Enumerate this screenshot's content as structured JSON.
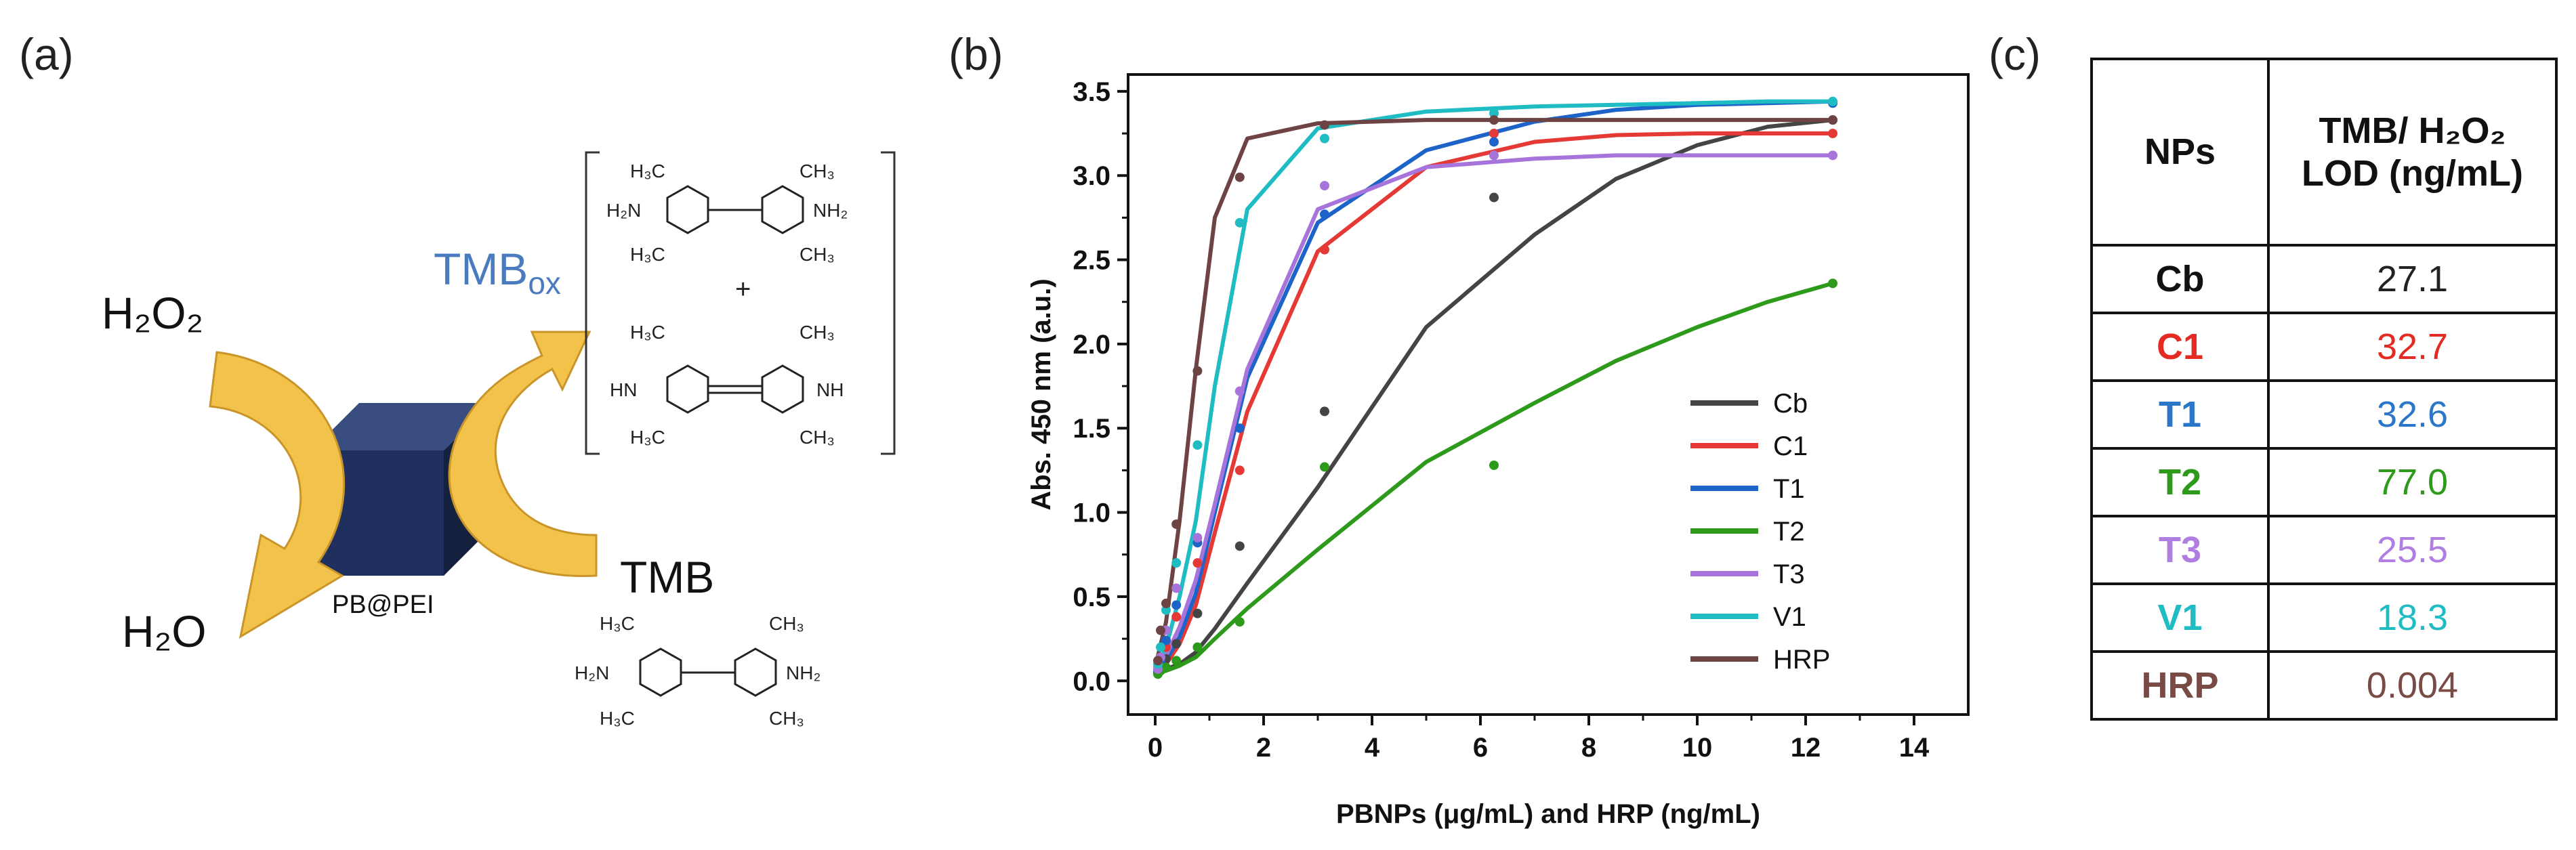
{
  "panels": {
    "a": "(a)",
    "b": "(b)",
    "c": "(c)"
  },
  "scheme": {
    "h2o2_label": "H₂O₂",
    "h2o_label": "H₂O",
    "tmb_label": "TMB",
    "tmbox_label": "TMB",
    "tmbox_sub": "ox",
    "particle_label": "PB@PEI",
    "plus_sign": "+",
    "groups": {
      "h3c": "H₃C",
      "ch3": "CH₃",
      "h2n": "H₂N",
      "nh2": "NH₂",
      "hn": "HN",
      "nh": "NH"
    },
    "colors": {
      "arrow": "#f2c24a",
      "arrow_edge": "#c9952a",
      "cube_front": "#1f2f5e",
      "cube_top": "#3a4d80",
      "cube_side": "#14213f",
      "tmbox": "#4a7bc0"
    }
  },
  "chart_data": {
    "type": "line",
    "xlabel": "PBNPs (μg/mL) and  HRP (ng/mL)",
    "ylabel": "Abs. 450 nm (a.u.)",
    "xlim": [
      -0.5,
      15
    ],
    "ylim": [
      -0.2,
      3.6
    ],
    "xticks": [
      0,
      2,
      4,
      6,
      8,
      10,
      12,
      14
    ],
    "yticks": [
      0.0,
      0.5,
      1.0,
      1.5,
      2.0,
      2.5,
      3.0,
      3.5
    ],
    "x": [
      0.05,
      0.1,
      0.2,
      0.39,
      0.78,
      1.56,
      3.125,
      6.25,
      12.5
    ],
    "series": [
      {
        "name": "Cb",
        "color": "#444444",
        "values": [
          0.05,
          0.08,
          0.13,
          0.22,
          0.4,
          0.8,
          1.6,
          2.87,
          3.33
        ],
        "fit": [
          0.05,
          0.07,
          0.1,
          0.17,
          0.31,
          0.58,
          1.15,
          2.1,
          2.65,
          2.98,
          3.18,
          3.29,
          3.33
        ]
      },
      {
        "name": "C1",
        "color": "#e53935",
        "values": [
          0.06,
          0.1,
          0.2,
          0.38,
          0.7,
          1.25,
          2.56,
          3.25,
          3.25
        ],
        "fit": [
          0.05,
          0.1,
          0.22,
          0.45,
          0.88,
          1.6,
          2.55,
          3.05,
          3.2,
          3.24,
          3.25,
          3.25,
          3.25
        ]
      },
      {
        "name": "T1",
        "color": "#1e63c8",
        "values": [
          0.06,
          0.12,
          0.24,
          0.45,
          0.82,
          1.5,
          2.77,
          3.2,
          3.43
        ],
        "fit": [
          0.05,
          0.12,
          0.26,
          0.52,
          1.0,
          1.8,
          2.72,
          3.15,
          3.32,
          3.39,
          3.42,
          3.43,
          3.44
        ]
      },
      {
        "name": "T2",
        "color": "#2e9a1c",
        "values": [
          0.04,
          0.06,
          0.08,
          0.12,
          0.2,
          0.35,
          1.27,
          1.28,
          2.36
        ],
        "fit": [
          0.04,
          0.06,
          0.09,
          0.14,
          0.25,
          0.43,
          0.78,
          1.3,
          1.65,
          1.9,
          2.1,
          2.25,
          2.36
        ]
      },
      {
        "name": "T3",
        "color": "#a774db",
        "values": [
          0.07,
          0.14,
          0.3,
          0.55,
          0.85,
          1.72,
          2.94,
          3.12,
          3.12
        ],
        "fit": [
          0.05,
          0.15,
          0.32,
          0.6,
          1.05,
          1.85,
          2.8,
          3.05,
          3.1,
          3.12,
          3.12,
          3.12,
          3.12
        ]
      },
      {
        "name": "V1",
        "color": "#1fbcc4",
        "values": [
          0.1,
          0.2,
          0.42,
          0.7,
          1.4,
          2.72,
          3.22,
          3.37,
          3.44
        ],
        "fit": [
          0.06,
          0.2,
          0.5,
          0.95,
          1.75,
          2.8,
          3.28,
          3.38,
          3.41,
          3.42,
          3.43,
          3.44,
          3.44
        ]
      },
      {
        "name": "HRP",
        "color": "#6d4343",
        "values": [
          0.12,
          0.3,
          0.46,
          0.93,
          1.84,
          2.99,
          3.3,
          3.33,
          3.33
        ],
        "fit": [
          0.08,
          0.35,
          0.95,
          1.85,
          2.75,
          3.22,
          3.31,
          3.33,
          3.33,
          3.33,
          3.33,
          3.33,
          3.33
        ]
      }
    ],
    "fit_x": [
      0.0,
      0.2,
      0.45,
      0.75,
      1.1,
      1.7,
      3.0,
      5.0,
      7.0,
      8.5,
      10.0,
      11.3,
      12.5
    ],
    "legend_position": "center-right"
  },
  "table": {
    "header_name": "NPs",
    "header_value_line1": "TMB/ H₂O₂",
    "header_value_line2": "LOD (ng/mL)",
    "rows": [
      {
        "name": "Cb",
        "value": "27.1",
        "name_color": "#111111",
        "value_color": "#222222"
      },
      {
        "name": "C1",
        "value": "32.7",
        "name_color": "#e32b23",
        "value_color": "#e32b23"
      },
      {
        "name": "T1",
        "value": "32.6",
        "name_color": "#2b76c9",
        "value_color": "#2b76c9"
      },
      {
        "name": "T2",
        "value": "77.0",
        "name_color": "#2e9a1c",
        "value_color": "#2e9a1c"
      },
      {
        "name": "T3",
        "value": "25.5",
        "name_color": "#b07de0",
        "value_color": "#b07de0"
      },
      {
        "name": "V1",
        "value": "18.3",
        "name_color": "#1fbcc4",
        "value_color": "#1fbcc4"
      },
      {
        "name": "HRP",
        "value": "0.004",
        "name_color": "#7a4a45",
        "value_color": "#7a4a45"
      }
    ]
  }
}
